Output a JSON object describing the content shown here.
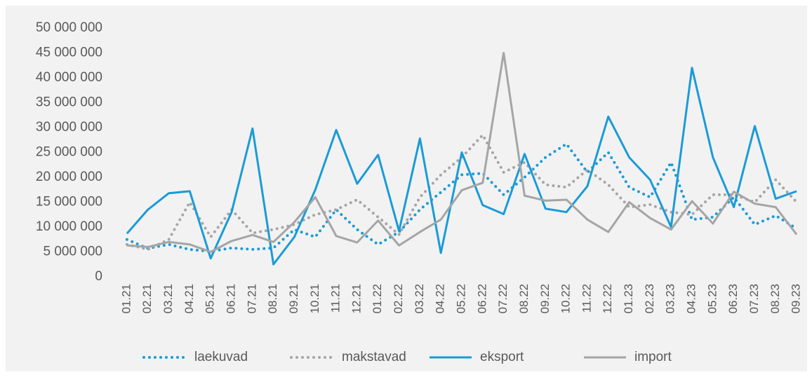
{
  "chart_data": {
    "type": "line",
    "categories": [
      "01.21",
      "02.21",
      "03.21",
      "04.21",
      "05.21",
      "06.21",
      "07.21",
      "08.21",
      "09.21",
      "10.21",
      "11.21",
      "12.21",
      "01.22",
      "02.22",
      "03.22",
      "04.22",
      "05.22",
      "06.22",
      "07.22",
      "08.22",
      "09.22",
      "10.22",
      "11.22",
      "12.22",
      "01.23",
      "02.23",
      "03.23",
      "04.23",
      "05.23",
      "06.23",
      "07.23",
      "08.23",
      "09.23"
    ],
    "series": [
      {
        "name": "laekuvad",
        "color": "#1a9bd7",
        "line_style": "dotted",
        "values": [
          7500000,
          5700000,
          6500000,
          5500000,
          5100000,
          5800000,
          5500000,
          5800000,
          9500000,
          8000000,
          13500000,
          9500000,
          6500000,
          9000000,
          13500000,
          17000000,
          20500000,
          20800000,
          16500000,
          20000000,
          24000000,
          26700000,
          21000000,
          25000000,
          18000000,
          16000000,
          23000000,
          11500000,
          12000000,
          16000000,
          10500000,
          12300000,
          9700000
        ]
      },
      {
        "name": "makstavad",
        "color": "#a5a5a5",
        "line_style": "dotted",
        "values": [
          6500000,
          5500000,
          7500000,
          15000000,
          8000000,
          13500000,
          8800000,
          9500000,
          10500000,
          12500000,
          13500000,
          15500000,
          12000000,
          8500000,
          16000000,
          20500000,
          24000000,
          28500000,
          21000000,
          23000000,
          18500000,
          18000000,
          21500000,
          18500000,
          14000000,
          14500000,
          13000000,
          12500000,
          16500000,
          16500000,
          15000000,
          19500000,
          15000000
        ]
      },
      {
        "name": "eksport",
        "color": "#1a9bd7",
        "line_style": "solid",
        "values": [
          8700000,
          13500000,
          16800000,
          17200000,
          3700000,
          13000000,
          29800000,
          2500000,
          8000000,
          17500000,
          29500000,
          18700000,
          24500000,
          9200000,
          27800000,
          4800000,
          25000000,
          14400000,
          12600000,
          24700000,
          13700000,
          13000000,
          18200000,
          32200000,
          24000000,
          19500000,
          10000000,
          42000000,
          24000000,
          14000000,
          30300000,
          15700000,
          17200000
        ]
      },
      {
        "name": "import",
        "color": "#a5a5a5",
        "line_style": "solid",
        "values": [
          6300000,
          6000000,
          7000000,
          6500000,
          5000000,
          7200000,
          8400000,
          7000000,
          11000000,
          16000000,
          8200000,
          6900000,
          11300000,
          6300000,
          9000000,
          11500000,
          17400000,
          18900000,
          45000000,
          16300000,
          15300000,
          15500000,
          11500000,
          9000000,
          15000000,
          11800000,
          9500000,
          15200000,
          10700000,
          17100000,
          14700000,
          14000000,
          8500000
        ]
      }
    ],
    "ylim": [
      0,
      50000000
    ],
    "yticks": [
      0,
      {
        "value": 5000000,
        "label": "5 000 000"
      },
      {
        "value": 10000000,
        "label": "10 000 000"
      },
      {
        "value": 15000000,
        "label": "15 000 000"
      },
      {
        "value": 20000000,
        "label": "20 000 000"
      },
      {
        "value": 25000000,
        "label": "25 000 000"
      },
      {
        "value": 30000000,
        "label": "30 000 000"
      },
      {
        "value": 35000000,
        "label": "35 000 000"
      },
      {
        "value": 40000000,
        "label": "40 000 000"
      },
      {
        "value": 45000000,
        "label": "45 000 000"
      },
      {
        "value": 50000000,
        "label": "50 000 000"
      }
    ],
    "legend": "bottom"
  }
}
